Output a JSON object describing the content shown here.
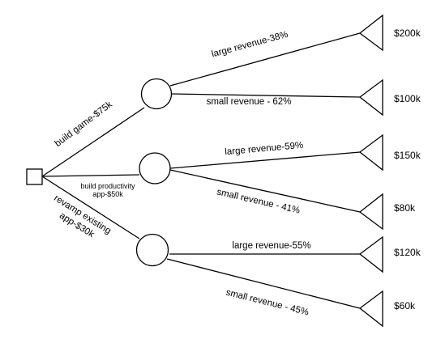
{
  "decision_tree": {
    "root": {
      "shape": "square",
      "label": ""
    },
    "branches": [
      {
        "option": "build game-$75k",
        "outcomes": [
          {
            "label": "large revenue-38%",
            "payoff": "$200k"
          },
          {
            "label": "small revenue - 62%",
            "payoff": "$100k"
          }
        ]
      },
      {
        "option_lines": [
          "build productivity",
          "app-$50k"
        ],
        "outcomes": [
          {
            "label": "large revenue-59%",
            "payoff": "$150k"
          },
          {
            "label": "small revenue - 41%",
            "payoff": "$80k"
          }
        ]
      },
      {
        "option_lines": [
          "revamp existing",
          "app-$30k"
        ],
        "outcomes": [
          {
            "label": "large revenue-55%",
            "payoff": "$120k"
          },
          {
            "label": "small revenue - 45%",
            "payoff": "$60k"
          }
        ]
      }
    ],
    "colors": {
      "stroke": "#000000",
      "fill": "#ffffff",
      "text": "#000000"
    }
  }
}
